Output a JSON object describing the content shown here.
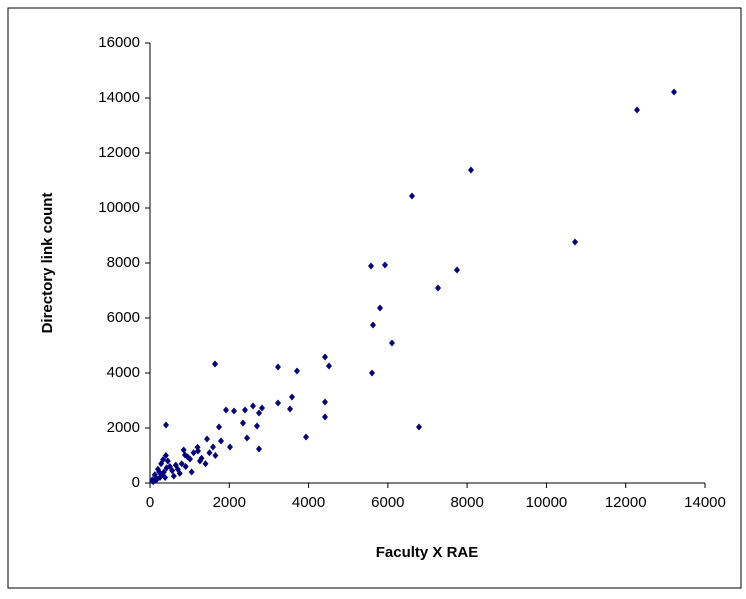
{
  "chart_data": {
    "type": "scatter",
    "x_label": "Faculty X RAE",
    "y_label": "Directory link count",
    "color": "#000080",
    "xlim": [
      0,
      14000
    ],
    "ylim": [
      0,
      16000
    ],
    "xticks": [
      0,
      2000,
      4000,
      6000,
      8000,
      10000,
      12000,
      14000
    ],
    "yticks": [
      0,
      2000,
      4000,
      6000,
      8000,
      10000,
      12000,
      14000,
      16000
    ],
    "series": [
      {
        "x": [
          13218,
          12285,
          8097,
          6609,
          10721,
          5575,
          5928,
          7744,
          7265,
          5802,
          5625,
          6104,
          1640,
          3229,
          4414,
          3708,
          4515,
          5600,
          4414,
          4414,
          3582,
          3532,
          3229,
          3935,
          6786,
          2825,
          2750,
          2598,
          2396,
          1917,
          2119,
          404,
          2346,
          2699,
          2750,
          2447,
          1741,
          1438,
          1791,
          2018,
          1589,
          1211,
          1009,
          1261,
          883,
          1100,
          950,
          800,
          700,
          650,
          560,
          500,
          450,
          400,
          350,
          300,
          280,
          250,
          200,
          180,
          150,
          120,
          100,
          80,
          60,
          1300,
          1500,
          1200,
          900,
          750,
          600,
          420,
          380,
          330,
          230,
          1050,
          850,
          1650,
          1400
        ],
        "y": [
          14218,
          13564,
          11382,
          10436,
          8764,
          7891,
          7927,
          7745,
          7091,
          6364,
          5745,
          5091,
          4327,
          4218,
          4582,
          4073,
          4255,
          4000,
          2945,
          2400,
          3127,
          2691,
          2909,
          1673,
          2036,
          2727,
          2545,
          2800,
          2654,
          2654,
          2618,
          2109,
          2182,
          2073,
          1236,
          1636,
          2036,
          1600,
          1527,
          1309,
          1309,
          1164,
          873,
          800,
          1018,
          1100,
          950,
          700,
          500,
          650,
          450,
          600,
          800,
          1000,
          400,
          300,
          700,
          200,
          500,
          150,
          100,
          300,
          80,
          50,
          120,
          900,
          1100,
          1300,
          600,
          350,
          250,
          550,
          200,
          850,
          400,
          400,
          1200,
          1000,
          700
        ]
      }
    ]
  }
}
